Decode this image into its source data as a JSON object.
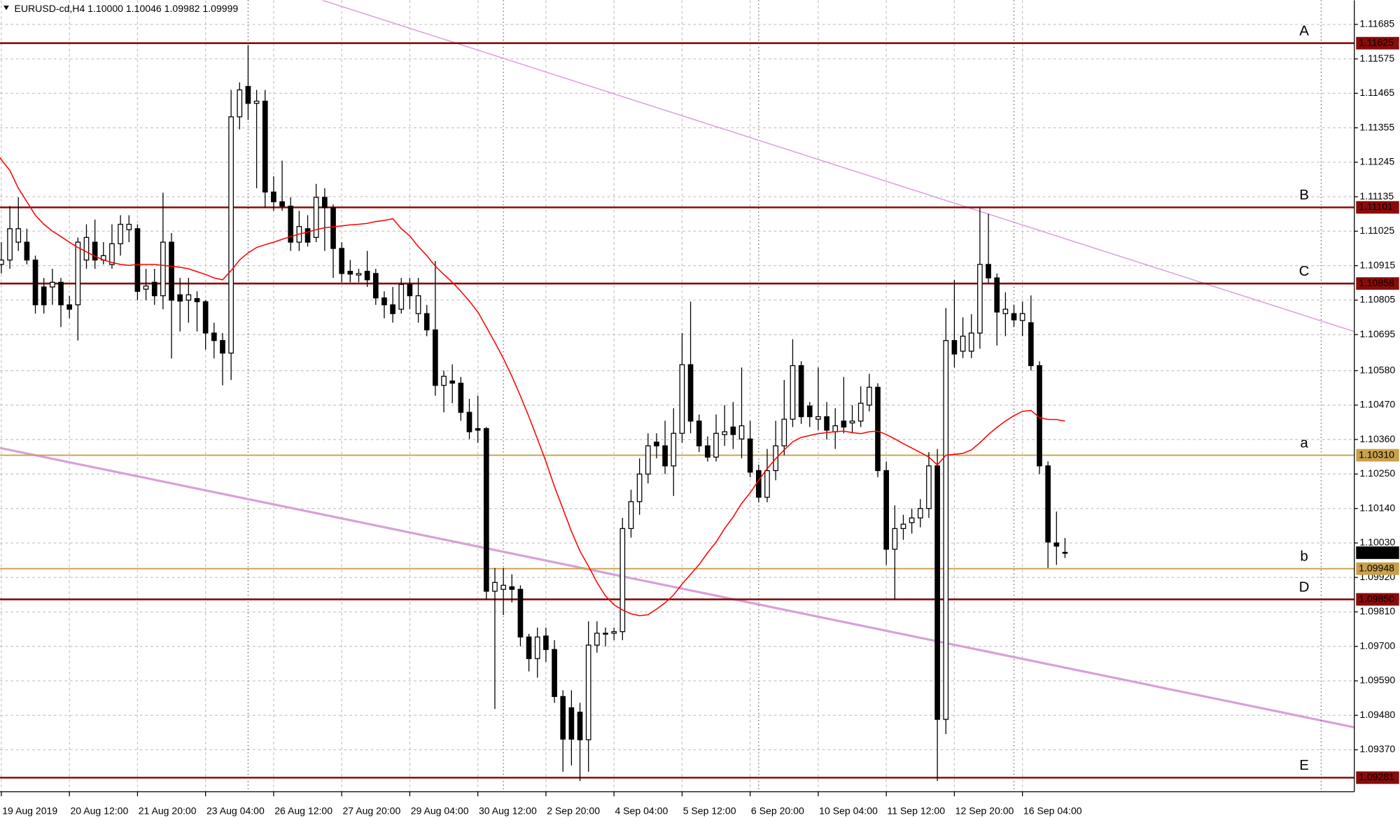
{
  "chart_data": {
    "type": "candlestick",
    "title": "EURUSD-cd,H4  1.10000 1.10046 1.09982 1.09999",
    "categories": [
      null,
      "19 Aug 2019",
      null,
      null,
      null,
      null,
      null,
      null,
      null,
      "20 Aug 12:00",
      null,
      null,
      null,
      null,
      null,
      null,
      null,
      "21 Aug 20:00",
      null,
      null,
      null,
      null,
      null,
      null,
      null,
      "23 Aug 04:00",
      null,
      null,
      null,
      null,
      null,
      null,
      null,
      "26 Aug 12:00",
      null,
      null,
      null,
      null,
      null,
      null,
      null,
      "27 Aug 20:00",
      null,
      null,
      null,
      null,
      null,
      null,
      null,
      "29 Aug 04:00",
      null,
      null,
      null,
      null,
      null,
      null,
      null,
      "30 Aug 12:00",
      null,
      null,
      null,
      null,
      null,
      null,
      null,
      "2 Sep 20:00",
      null,
      null,
      null,
      null,
      null,
      null,
      null,
      "4 Sep 04:00",
      null,
      null,
      null,
      null,
      null,
      null,
      null,
      "5 Sep 12:00",
      null,
      null,
      null,
      null,
      null,
      null,
      null,
      "6 Sep 20:00",
      null,
      null,
      null,
      null,
      null,
      null,
      null,
      "10 Sep 04:00",
      null,
      null,
      null,
      null,
      null,
      null,
      null,
      "11 Sep 12:00",
      null,
      null,
      null,
      null,
      null,
      null,
      null,
      "12 Sep 20:00",
      null,
      null,
      null,
      null,
      null,
      null,
      null,
      "16 Sep 04:00",
      null,
      null,
      null,
      null,
      null
    ],
    "open": [
      1.10905,
      1.10919,
      1.10933,
      1.1099,
      1.1099,
      1.10933,
      1.10847,
      1.10847,
      1.10862,
      1.1079,
      1.1079,
      1.10933,
      1.1099,
      1.10933,
      1.10919,
      1.10985,
      1.1103,
      1.11033,
      1.1084,
      1.10862,
      1.10819,
      1.1099,
      1.10822,
      1.10805,
      1.1081,
      1.108,
      1.107,
      1.10676,
      1.10636,
      1.1139,
      1.11487,
      1.11433,
      1.1144,
      1.1115,
      1.11119,
      1.11105,
      1.1099,
      1.11033,
      1.11005,
      1.11133,
      1.111,
      1.1097,
      1.10897,
      1.10885,
      1.10897,
      1.1089,
      1.10812,
      1.1079,
      1.10776,
      1.10855,
      1.10762,
      1.10762,
      1.1071,
      1.10533,
      1.10547,
      1.1054,
      1.10447,
      1.10395,
      1.10395,
      1.09876,
      1.09882,
      1.0989,
      1.09882,
      1.0973,
      1.09661,
      1.09733,
      1.0969,
      1.0954,
      1.09504,
      1.0949,
      1.09402,
      1.09704,
      1.09739,
      1.09742,
      1.09747,
      1.10076,
      1.10162,
      1.1025,
      1.10352,
      1.1034,
      1.10276,
      1.1038,
      1.10599,
      1.10419,
      1.1034,
      1.10304,
      1.10376,
      1.104,
      1.10362,
      1.10362,
      1.10261,
      1.10176,
      1.10261,
      1.1034,
      1.10425,
      1.10596,
      1.10467,
      1.10425,
      1.10433,
      1.10385,
      1.10419,
      1.10413,
      1.10419,
      1.1047,
      1.10527,
      1.10261,
      1.1001,
      1.10076,
      1.10095,
      1.1011,
      1.1014,
      1.10276,
      1.09467,
      1.10676,
      1.10642,
      1.10642,
      1.107,
      1.10919,
      1.10876,
      1.10762,
      1.10762,
      1.1074,
      1.10733,
      1.10596,
      1.10276,
      1.1003,
      1.1
    ],
    "high": [
      1.1094,
      1.1099,
      1.11105,
      1.11133,
      1.11033,
      1.10947,
      1.10876,
      1.10905,
      1.10876,
      1.10819,
      1.11005,
      1.11047,
      1.11062,
      1.1099,
      1.11047,
      1.11076,
      1.11076,
      1.11047,
      1.10905,
      1.10905,
      1.11148,
      1.11019,
      1.10876,
      1.10876,
      1.10833,
      1.10805,
      1.10733,
      1.107,
      1.11476,
      1.115,
      1.11619,
      1.11476,
      1.11476,
      1.112,
      1.1125,
      1.11133,
      1.1109,
      1.11076,
      1.11176,
      1.11162,
      1.1111,
      1.1099,
      1.10933,
      1.10905,
      1.10962,
      1.10905,
      1.10833,
      1.10847,
      1.10876,
      1.10876,
      1.10876,
      1.1079,
      1.1093,
      1.1058,
      1.106,
      1.1056,
      1.1049,
      1.105,
      1.104,
      1.0995,
      1.0995,
      1.0993,
      1.09895,
      1.0974,
      1.0976,
      1.0976,
      1.0972,
      1.0956,
      1.0956,
      1.0952,
      1.0978,
      1.0978,
      1.0976,
      1.0976,
      1.1011,
      1.102,
      1.103,
      1.1038,
      1.1038,
      1.1042,
      1.1046,
      1.107,
      1.108,
      1.1044,
      1.1037,
      1.1044,
      1.1047,
      1.1048,
      1.1059,
      1.1042,
      1.1028,
      1.1033,
      1.1042,
      1.1055,
      1.1068,
      1.1061,
      1.1048,
      1.1059,
      1.1048,
      1.1046,
      1.1056,
      1.1047,
      1.1053,
      1.1057,
      1.1054,
      1.1029,
      1.1015,
      1.1012,
      1.1014,
      1.1017,
      1.1032,
      1.1033,
      1.1078,
      1.1087,
      1.1075,
      1.1076,
      1.111,
      1.1108,
      1.1089,
      1.1083,
      1.1079,
      1.108,
      1.1082,
      1.1061,
      1.1029,
      1.1013,
      1.10046
    ],
    "low": [
      1.1088,
      1.1089,
      1.10905,
      1.10962,
      1.10919,
      1.10762,
      1.10762,
      1.1079,
      1.10719,
      1.10747,
      1.10676,
      1.10905,
      1.10905,
      1.10919,
      1.10905,
      1.10947,
      1.1099,
      1.10805,
      1.10805,
      1.1079,
      1.10776,
      1.10619,
      1.10705,
      1.10733,
      1.10705,
      1.10647,
      1.10619,
      1.10533,
      1.1055,
      1.1135,
      1.1138,
      1.11162,
      1.111,
      1.1109,
      1.1109,
      1.10962,
      1.10962,
      1.10976,
      1.1099,
      1.10962,
      1.10876,
      1.10862,
      1.10862,
      1.10862,
      1.10847,
      1.1079,
      1.10747,
      1.10733,
      1.10762,
      1.10776,
      1.10733,
      1.1069,
      1.105,
      1.10447,
      1.10476,
      1.1042,
      1.10362,
      1.1035,
      1.0985,
      1.095,
      1.098,
      1.0984,
      1.097,
      1.0962,
      1.096,
      1.0965,
      1.0952,
      1.093,
      1.0932,
      1.0927,
      1.093,
      1.0968,
      1.097,
      1.0972,
      1.0972,
      1.10047,
      1.1012,
      1.1022,
      1.103,
      1.1025,
      1.1018,
      1.1035,
      1.1038,
      1.1032,
      1.1029,
      1.1029,
      1.1034,
      1.1033,
      1.103,
      1.1024,
      1.1016,
      1.1016,
      1.1023,
      1.1031,
      1.104,
      1.1041,
      1.104,
      1.1039,
      1.1036,
      1.1033,
      1.1038,
      1.1038,
      1.104,
      1.1045,
      1.1024,
      1.0996,
      1.0985,
      1.1004,
      1.1006,
      1.1008,
      1.1011,
      1.0927,
      1.0942,
      1.1059,
      1.1062,
      1.1062,
      1.1065,
      1.1086,
      1.1066,
      1.1069,
      1.1072,
      1.1069,
      1.1058,
      1.1025,
      1.0995,
      1.0996,
      1.09982
    ],
    "close": [
      1.1092,
      1.10933,
      1.11033,
      1.11033,
      1.10933,
      1.1079,
      1.1079,
      1.10862,
      1.1079,
      1.10776,
      1.1099,
      1.11005,
      1.10933,
      1.10947,
      1.10985,
      1.11047,
      1.11047,
      1.10833,
      1.1085,
      1.10819,
      1.1099,
      1.10805,
      1.10802,
      1.10822,
      1.108,
      1.107,
      1.10676,
      1.10636,
      1.1139,
      1.11476,
      1.11433,
      1.1144,
      1.1115,
      1.11119,
      1.11105,
      1.1099,
      1.1104,
      1.1099,
      1.11133,
      1.111,
      1.1097,
      1.1089,
      1.10888,
      1.1089,
      1.1087,
      1.10812,
      1.1079,
      1.10762,
      1.10855,
      1.10819,
      1.10819,
      1.1071,
      1.10533,
      1.10562,
      1.1054,
      1.10447,
      1.10385,
      1.1039,
      1.09876,
      1.09904,
      1.09895,
      1.09882,
      1.0973,
      1.09661,
      1.0973,
      1.0969,
      1.0954,
      1.09404,
      1.09404,
      1.09402,
      1.09704,
      1.09742,
      1.09742,
      1.09747,
      1.10076,
      1.10162,
      1.1025,
      1.1034,
      1.1034,
      1.10276,
      1.1038,
      1.10599,
      1.10419,
      1.1034,
      1.10304,
      1.1038,
      1.10385,
      1.10376,
      1.10404,
      1.10256,
      1.10176,
      1.10261,
      1.1034,
      1.10425,
      1.10596,
      1.10433,
      1.10433,
      1.10433,
      1.1039,
      1.10404,
      1.104,
      1.10419,
      1.10476,
      1.10527,
      1.10261,
      1.1001,
      1.10076,
      1.1009,
      1.1011,
      1.1014,
      1.10276,
      1.09467,
      1.10676,
      1.10633,
      1.1069,
      1.107,
      1.10919,
      1.10876,
      1.10767,
      1.10776,
      1.10742,
      1.10762,
      1.10596,
      1.10276,
      1.10033,
      1.1002,
      1.09999
    ],
    "up_color": "#ffffff",
    "down_color": "#000000",
    "ma": {
      "color": "#ff0000",
      "values": [
        1.1129,
        1.11253,
        1.11219,
        1.11162,
        1.11119,
        1.11076,
        1.11047,
        1.11025,
        1.11008,
        1.1099,
        1.10973,
        1.10959,
        1.10945,
        1.10933,
        1.10925,
        1.10919,
        1.10916,
        1.10919,
        1.10919,
        1.10919,
        1.10916,
        1.10913,
        1.1091,
        1.10905,
        1.10896,
        1.10887,
        1.10876,
        1.1087,
        1.10899,
        1.10933,
        1.10956,
        1.10973,
        1.10982,
        1.1099,
        1.10999,
        1.11008,
        1.11016,
        1.11022,
        1.1103,
        1.11036,
        1.11039,
        1.11042,
        1.11045,
        1.11047,
        1.1105,
        1.11056,
        1.11059,
        1.11065,
        1.11033,
        1.1101,
        1.10976,
        1.10947,
        1.10913,
        1.10887,
        1.10862,
        1.10833,
        1.10802,
        1.10767,
        1.10719,
        1.1067,
        1.10619,
        1.10562,
        1.10499,
        1.10433,
        1.10362,
        1.1029,
        1.1021,
        1.10139,
        1.10067,
        1.10004,
        1.09956,
        1.09904,
        1.09861,
        1.09833,
        1.09816,
        1.09804,
        1.09798,
        1.09801,
        1.09819,
        1.09839,
        1.09864,
        1.09899,
        1.0993,
        1.09961,
        1.09999,
        1.10033,
        1.10076,
        1.10113,
        1.10156,
        1.1019,
        1.1023,
        1.10267,
        1.10299,
        1.10327,
        1.10353,
        1.10367,
        1.10373,
        1.10379,
        1.10382,
        1.10385,
        1.10387,
        1.10382,
        1.10379,
        1.10385,
        1.10387,
        1.10376,
        1.10362,
        1.10347,
        1.10333,
        1.10319,
        1.10304,
        1.10279,
        1.1031,
        1.10313,
        1.10316,
        1.10327,
        1.1035,
        1.10376,
        1.10399,
        1.10419,
        1.10436,
        1.1045,
        1.10453,
        1.1043,
        1.10424,
        1.10424,
        1.10419
      ]
    },
    "levels": [
      {
        "name": "A",
        "value": 1.11625,
        "color": "#8b0a0a"
      },
      {
        "name": "B",
        "value": 1.11101,
        "color": "#8b0a0a"
      },
      {
        "name": "C",
        "value": 1.10858,
        "color": "#8b0a0a"
      },
      {
        "name": "a",
        "value": 1.1031,
        "label": "1.10310",
        "color": "#c9a04a"
      },
      {
        "name": "b",
        "value": 1.09948,
        "color": "#c9a04a"
      },
      {
        "name": "D",
        "value": 1.0985,
        "label": "1.09850",
        "color": "#8b0a0a"
      },
      {
        "name": "E",
        "value": 1.09281,
        "color": "#8b0a0a"
      }
    ],
    "last_price": 1.09999,
    "ylim": [
      1.09236,
      1.11762
    ],
    "yticks": [
      1.11685,
      1.11575,
      1.11465,
      1.11355,
      1.11245,
      1.11135,
      1.11025,
      1.10915,
      1.10805,
      1.10695,
      {
        "value": 1.1058,
        "label": "1.10580"
      },
      {
        "value": 1.1047,
        "label": "1.10470"
      },
      {
        "value": 1.1036,
        "label": "1.10360"
      },
      {
        "value": 1.1025,
        "label": "1.10250"
      },
      {
        "value": 1.1014,
        "label": "1.10140"
      },
      {
        "value": 1.1003,
        "label": "1.10030"
      },
      {
        "value": 1.0992,
        "label": "1.09920"
      },
      {
        "value": 1.0981,
        "label": "1.09810"
      },
      {
        "value": 1.097,
        "label": "1.09700"
      },
      {
        "value": 1.0959,
        "label": "1.09590"
      },
      {
        "value": 1.0948,
        "label": "1.09480"
      },
      {
        "value": 1.0937,
        "label": "1.09370"
      }
    ],
    "grid": true
  }
}
